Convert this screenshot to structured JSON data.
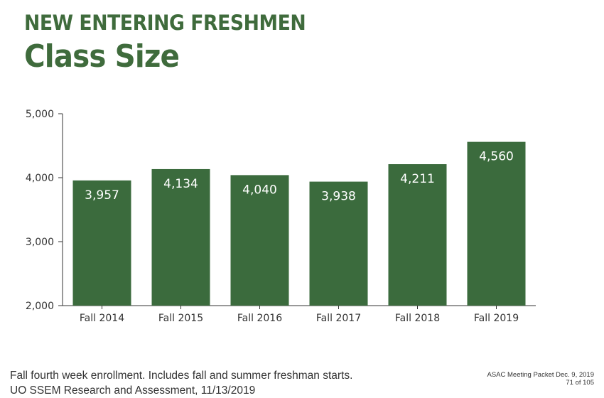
{
  "header": {
    "supertitle": "NEW ENTERING FRESHMEN",
    "title": "Class Size"
  },
  "chart_data": {
    "type": "bar",
    "categories": [
      "Fall 2014",
      "Fall 2015",
      "Fall 2016",
      "Fall 2017",
      "Fall 2018",
      "Fall 2019"
    ],
    "values": [
      3957,
      4134,
      4040,
      3938,
      4211,
      4560
    ],
    "value_labels": [
      "3,957",
      "4,134",
      "4,040",
      "3,938",
      "4,211",
      "4,560"
    ],
    "ylim": [
      2000,
      5000
    ],
    "yticks": [
      2000,
      3000,
      4000,
      5000
    ],
    "ytick_labels": [
      "2,000",
      "3,000",
      "4,000",
      "5,000"
    ],
    "grid": false,
    "bar_color": "#3b6b3d",
    "label_color": "#ffffff"
  },
  "footer": {
    "note_line1": "Fall fourth week enrollment. Includes fall and summer freshman starts.",
    "note_line2": "UO SSEM Research and Assessment, 11/13/2019",
    "packet_line1": "ASAC Meeting Packet Dec. 9, 2019",
    "packet_line2": "71 of 105"
  },
  "colors": {
    "heading": "#3f6b3c",
    "axis": "#333333"
  }
}
